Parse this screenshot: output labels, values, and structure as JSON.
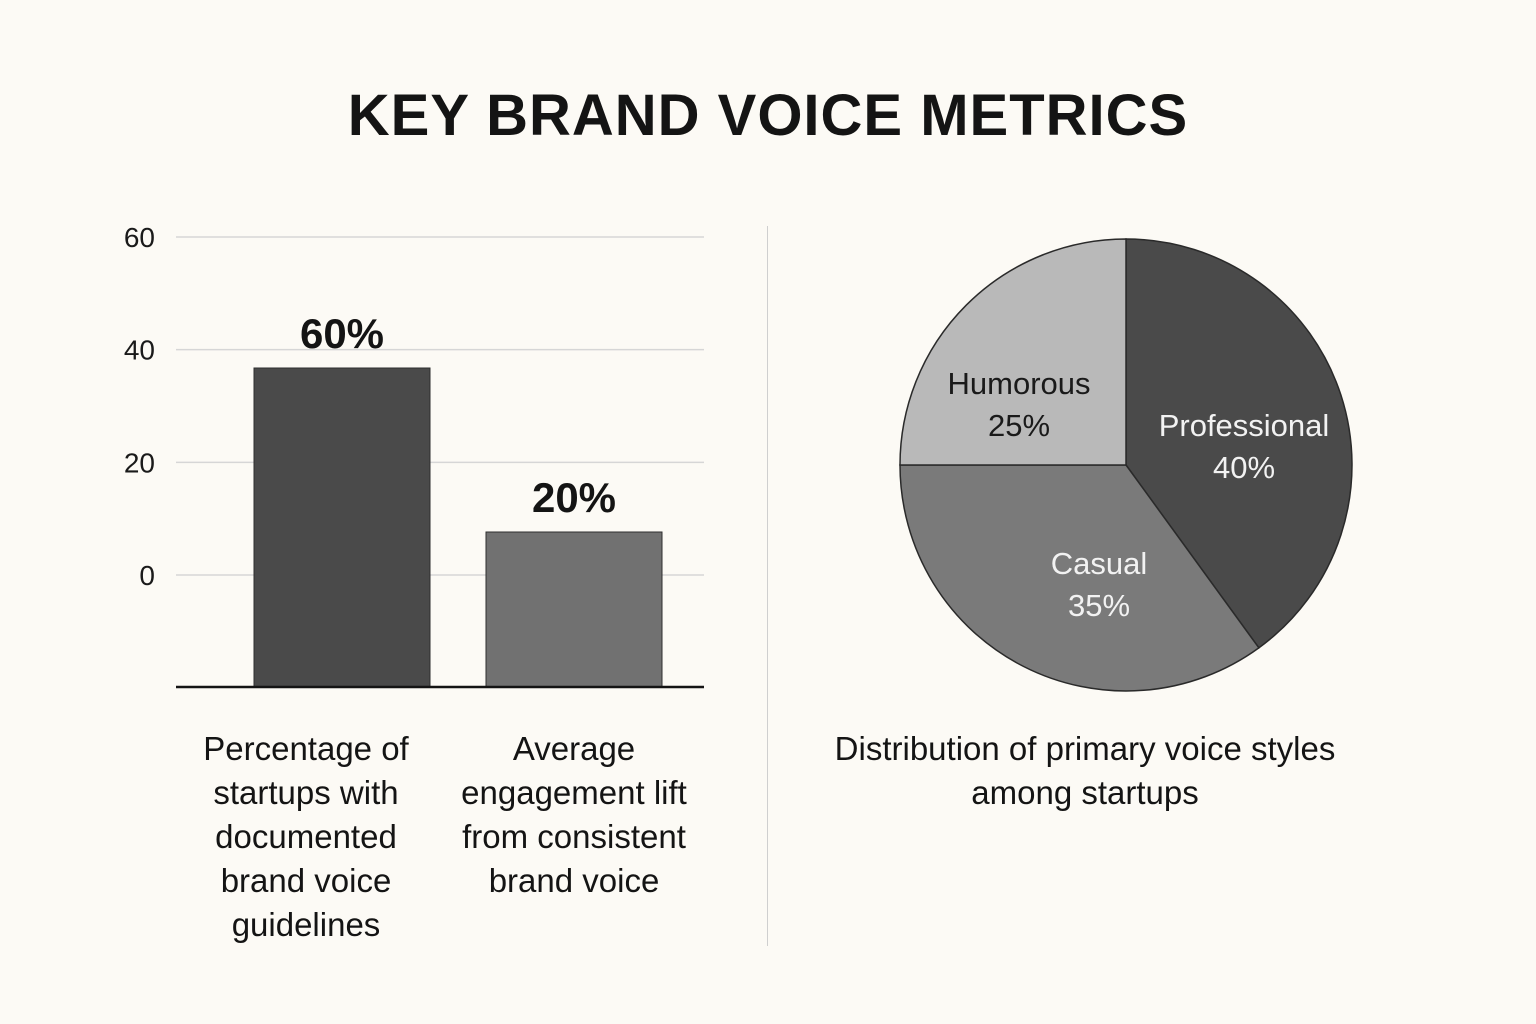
{
  "title": "KEY BRAND VOICE METRICS",
  "colors": {
    "background": "#fcfaf5",
    "bar_primary": "#4a4a4a",
    "bar_secondary": "#717171",
    "pie_professional": "#4a4a4a",
    "pie_casual": "#7a7a7a",
    "pie_humorous": "#b9b9b9"
  },
  "chart_data": [
    {
      "type": "bar",
      "categories": [
        "Percentage of startups with documented brand voice guidelines",
        "Average engagement lift from consistent brand voice"
      ],
      "values": [
        60,
        20
      ],
      "value_labels": [
        "60%",
        "20%"
      ],
      "yticks": [
        0,
        20,
        40,
        60
      ],
      "ylim": [
        0,
        60
      ],
      "grid": true
    },
    {
      "type": "pie",
      "caption": "Distribution of primary voice styles among startups",
      "slices": [
        {
          "label": "Professional",
          "value": 40,
          "pct_label": "40%"
        },
        {
          "label": "Casual",
          "value": 35,
          "pct_label": "35%"
        },
        {
          "label": "Humorous",
          "value": 25,
          "pct_label": "25%"
        }
      ]
    }
  ]
}
